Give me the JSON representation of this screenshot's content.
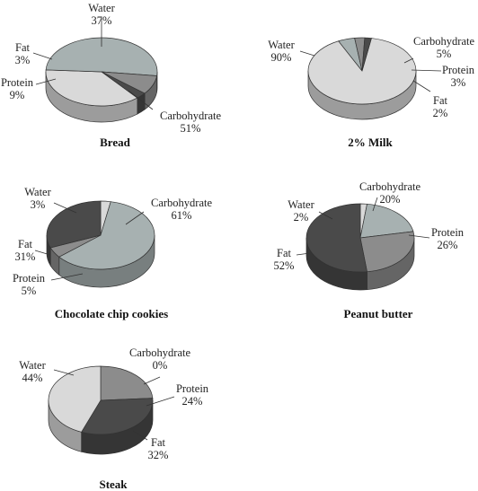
{
  "chart_data": [
    {
      "type": "pie",
      "title": "Bread",
      "slices": [
        {
          "label": "Water",
          "value": 37,
          "display": "37%",
          "color": "#d9d9d9"
        },
        {
          "label": "Carbohydrate",
          "value": 51,
          "display": "51%",
          "color": "#a7b1b1"
        },
        {
          "label": "Protein",
          "value": 9,
          "display": "9%",
          "color": "#8c8c8c"
        },
        {
          "label": "Fat",
          "value": 3,
          "display": "3%",
          "color": "#4a4a4a"
        }
      ]
    },
    {
      "type": "pie",
      "title": "2% Milk",
      "slices": [
        {
          "label": "Water",
          "value": 90,
          "display": "90%",
          "color": "#d9d9d9"
        },
        {
          "label": "Carbohydrate",
          "value": 5,
          "display": "5%",
          "color": "#a7b1b1"
        },
        {
          "label": "Protein",
          "value": 3,
          "display": "3%",
          "color": "#8c8c8c"
        },
        {
          "label": "Fat",
          "value": 2,
          "display": "2%",
          "color": "#4a4a4a"
        }
      ]
    },
    {
      "type": "pie",
      "title": "Chocolate chip cookies",
      "slices": [
        {
          "label": "Water",
          "value": 3,
          "display": "3%",
          "color": "#d9d9d9"
        },
        {
          "label": "Carbohydrate",
          "value": 61,
          "display": "61%",
          "color": "#a7b1b1"
        },
        {
          "label": "Protein",
          "value": 5,
          "display": "5%",
          "color": "#8c8c8c"
        },
        {
          "label": "Fat",
          "value": 31,
          "display": "31%",
          "color": "#4a4a4a"
        }
      ]
    },
    {
      "type": "pie",
      "title": "Peanut butter",
      "slices": [
        {
          "label": "Water",
          "value": 2,
          "display": "2%",
          "color": "#d9d9d9"
        },
        {
          "label": "Carbohydrate",
          "value": 20,
          "display": "20%",
          "color": "#a7b1b1"
        },
        {
          "label": "Protein",
          "value": 26,
          "display": "26%",
          "color": "#8c8c8c"
        },
        {
          "label": "Fat",
          "value": 52,
          "display": "52%",
          "color": "#4a4a4a"
        }
      ]
    },
    {
      "type": "pie",
      "title": "Steak",
      "slices": [
        {
          "label": "Water",
          "value": 44,
          "display": "44%",
          "color": "#d9d9d9"
        },
        {
          "label": "Carbohydrate",
          "value": 0,
          "display": "0%",
          "color": "#a7b1b1"
        },
        {
          "label": "Protein",
          "value": 24,
          "display": "24%",
          "color": "#8c8c8c"
        },
        {
          "label": "Fat",
          "value": 32,
          "display": "32%",
          "color": "#4a4a4a"
        }
      ]
    }
  ]
}
